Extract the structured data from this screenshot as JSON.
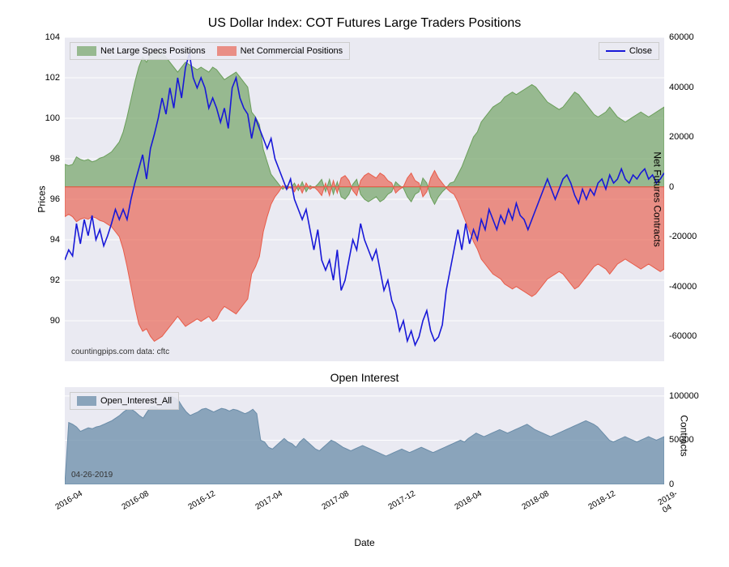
{
  "main_chart": {
    "title": "US Dollar Index: COT Futures Large Traders Positions",
    "left_axis_label": "Prices",
    "right_axis_label": "Net Futures Contracts",
    "left_ylim": [
      88,
      104
    ],
    "right_ylim": [
      -70000,
      60000
    ],
    "left_ticks": [
      90,
      92,
      94,
      96,
      98,
      100,
      102,
      104
    ],
    "right_ticks": [
      -60000,
      -40000,
      -20000,
      0,
      20000,
      40000,
      60000
    ],
    "x_ticks": [
      "2016-04",
      "2016-08",
      "2016-12",
      "2017-04",
      "2017-08",
      "2017-12",
      "2018-04",
      "2018-08",
      "2018-12",
      "2019-04"
    ],
    "colors": {
      "specs_fill": "#6a9e5a",
      "specs_fill_opacity": 0.65,
      "commercial_fill": "#e85c4a",
      "commercial_fill_opacity": 0.65,
      "close_line": "#1818d8",
      "zero_line": "#b0a050",
      "background": "#eaeaf2",
      "grid": "#ffffff"
    },
    "legend1_items": [
      {
        "label": "Net Large Specs Positions",
        "swatch": "#6a9e5a"
      },
      {
        "label": "Net Commercial Positions",
        "swatch": "#e85c4a"
      }
    ],
    "legend2_items": [
      {
        "label": "Close",
        "line": "#1818d8"
      }
    ],
    "footnote": "countingpips.com    data: cftc",
    "specs_values": [
      9000,
      8500,
      9000,
      12000,
      11000,
      10500,
      11000,
      10000,
      10500,
      11500,
      12000,
      13000,
      14000,
      16000,
      18000,
      22000,
      28000,
      35000,
      42000,
      48000,
      52000,
      50000,
      53000,
      54000,
      55000,
      54000,
      52000,
      50000,
      48000,
      46000,
      48000,
      50000,
      49000,
      48000,
      47000,
      48000,
      47000,
      46000,
      48000,
      47000,
      45000,
      43000,
      44000,
      45000,
      46000,
      44000,
      42000,
      40000,
      30000,
      28000,
      25000,
      15000,
      10000,
      5000,
      3000,
      1000,
      -1000,
      500,
      -500,
      1500,
      -1500,
      2000,
      -2000,
      500,
      -500,
      1000,
      3000,
      -2000,
      3000,
      -3000,
      2000,
      -4000,
      -5000,
      -3000,
      1000,
      3000,
      -3000,
      -5000,
      -6000,
      -5000,
      -4000,
      -6000,
      -5000,
      -3000,
      -2000,
      2000,
      500,
      -500,
      -4000,
      -6000,
      -3000,
      -2000,
      3500,
      1500,
      -4000,
      -7000,
      -4000,
      -2000,
      -500,
      1500,
      2000,
      5000,
      8000,
      12000,
      16000,
      20000,
      22000,
      26000,
      28000,
      30000,
      32000,
      33000,
      34000,
      36000,
      37000,
      38000,
      37000,
      38000,
      39000,
      40000,
      41000,
      40000,
      38000,
      36000,
      34000,
      33000,
      32000,
      31000,
      32000,
      34000,
      36000,
      38000,
      37000,
      35000,
      33000,
      31000,
      29000,
      28000,
      29000,
      30000,
      32000,
      30000,
      28000,
      27000,
      26000,
      27000,
      28000,
      29000,
      30000,
      29000,
      28000,
      29000,
      30000,
      31000,
      32000
    ],
    "commercial_values": [
      -12000,
      -11000,
      -12000,
      -14000,
      -13000,
      -12500,
      -13000,
      -12000,
      -12500,
      -13500,
      -14000,
      -15000,
      -16000,
      -18000,
      -20000,
      -25000,
      -32000,
      -40000,
      -48000,
      -55000,
      -58000,
      -57000,
      -60000,
      -62000,
      -61000,
      -60000,
      -58000,
      -56000,
      -54000,
      -52000,
      -54000,
      -56000,
      -55000,
      -54000,
      -53000,
      -54000,
      -53000,
      -52000,
      -54000,
      -53000,
      -50000,
      -48000,
      -49000,
      -50000,
      -51000,
      -49000,
      -47000,
      -45000,
      -35000,
      -32000,
      -28000,
      -18000,
      -12000,
      -7000,
      -4000,
      -2000,
      500,
      -1000,
      0,
      -2000,
      1000,
      -2500,
      1500,
      -1000,
      0,
      -1500,
      -3500,
      1500,
      -3500,
      2500,
      -2500,
      3500,
      4500,
      2500,
      -1500,
      -3500,
      2500,
      4500,
      5500,
      4500,
      3500,
      5500,
      4500,
      2500,
      1500,
      -2500,
      -1000,
      0,
      3500,
      5500,
      2500,
      1500,
      -4000,
      -2000,
      3500,
      6500,
      3500,
      1500,
      -500,
      -2000,
      -3000,
      -6000,
      -10000,
      -14000,
      -18000,
      -22000,
      -25000,
      -29000,
      -31000,
      -33000,
      -35000,
      -36000,
      -37000,
      -39000,
      -40000,
      -41000,
      -40000,
      -41000,
      -42000,
      -43000,
      -44000,
      -43000,
      -41000,
      -39000,
      -37000,
      -36000,
      -35000,
      -34000,
      -35000,
      -37000,
      -39000,
      -41000,
      -40000,
      -38000,
      -36000,
      -34000,
      -32000,
      -31000,
      -32000,
      -33000,
      -35000,
      -33000,
      -31000,
      -30000,
      -29000,
      -30000,
      -31000,
      -32000,
      -33000,
      -32000,
      -31000,
      -32000,
      -33000,
      -34000,
      -33000
    ],
    "close_values": [
      93.0,
      93.5,
      93.2,
      94.8,
      93.8,
      95.0,
      94.2,
      95.2,
      94.0,
      94.5,
      93.7,
      94.2,
      94.8,
      95.5,
      95.0,
      95.5,
      95.0,
      96.0,
      96.8,
      97.5,
      98.2,
      97.0,
      98.5,
      99.2,
      100.0,
      101.0,
      100.2,
      101.5,
      100.5,
      102.0,
      101.0,
      102.5,
      103.2,
      102.0,
      101.5,
      102.0,
      101.5,
      100.5,
      101.0,
      100.5,
      99.8,
      100.5,
      99.5,
      101.5,
      102.0,
      101.0,
      100.5,
      100.2,
      99.0,
      100.0,
      99.5,
      99.0,
      98.5,
      99.0,
      98.0,
      97.5,
      97.0,
      96.5,
      97.0,
      96.0,
      95.5,
      95.0,
      95.5,
      94.5,
      93.5,
      94.5,
      93.0,
      92.5,
      93.0,
      92.0,
      93.5,
      91.5,
      92.0,
      93.0,
      94.0,
      93.5,
      94.8,
      94.0,
      93.5,
      93.0,
      93.5,
      92.5,
      91.5,
      92.0,
      91.0,
      90.5,
      89.5,
      90.0,
      89.0,
      89.5,
      88.8,
      89.2,
      90.0,
      90.5,
      89.5,
      89.0,
      89.2,
      89.8,
      91.5,
      92.5,
      93.5,
      94.5,
      93.5,
      94.8,
      93.8,
      94.5,
      94.0,
      95.0,
      94.5,
      95.5,
      95.0,
      94.5,
      95.2,
      94.8,
      95.5,
      95.0,
      95.8,
      95.2,
      95.0,
      94.5,
      95.0,
      95.5,
      96.0,
      96.5,
      97.0,
      96.5,
      96.0,
      96.5,
      97.0,
      97.2,
      96.8,
      96.2,
      95.8,
      96.5,
      96.0,
      96.5,
      96.2,
      96.8,
      97.0,
      96.5,
      97.2,
      96.8,
      97.0,
      97.5,
      97.0,
      96.8,
      97.2,
      97.0,
      97.3,
      97.5,
      97.0,
      97.2,
      96.8,
      97.0,
      97.3
    ]
  },
  "sub_chart": {
    "title": "Open Interest",
    "right_axis_label": "Contracts",
    "right_ylim": [
      0,
      110000
    ],
    "right_ticks": [
      0,
      50000,
      100000
    ],
    "colors": {
      "fill": "#6a8ca8",
      "fill_opacity": 0.75,
      "background": "#eaeaf2"
    },
    "legend_items": [
      {
        "label": "Open_Interest_All",
        "swatch": "#6a8ca8"
      }
    ],
    "x_axis_label": "Date",
    "footnote": "04-26-2019",
    "oi_values": [
      0,
      70000,
      68000,
      65000,
      60000,
      62000,
      64000,
      63000,
      65000,
      66000,
      68000,
      70000,
      72000,
      75000,
      78000,
      82000,
      85000,
      85000,
      82000,
      78000,
      75000,
      82000,
      88000,
      88000,
      85000,
      88000,
      95000,
      100000,
      98000,
      95000,
      88000,
      82000,
      78000,
      80000,
      82000,
      85000,
      86000,
      84000,
      82000,
      84000,
      86000,
      85000,
      83000,
      85000,
      84000,
      82000,
      80000,
      82000,
      85000,
      80000,
      50000,
      48000,
      42000,
      40000,
      44000,
      48000,
      52000,
      48000,
      46000,
      42000,
      48000,
      52000,
      48000,
      44000,
      40000,
      38000,
      42000,
      46000,
      50000,
      48000,
      45000,
      42000,
      40000,
      38000,
      40000,
      42000,
      44000,
      42000,
      40000,
      38000,
      36000,
      34000,
      32000,
      34000,
      36000,
      38000,
      40000,
      38000,
      36000,
      38000,
      40000,
      42000,
      40000,
      38000,
      36000,
      38000,
      40000,
      42000,
      44000,
      46000,
      48000,
      50000,
      48000,
      52000,
      55000,
      58000,
      56000,
      54000,
      56000,
      58000,
      60000,
      62000,
      60000,
      58000,
      60000,
      62000,
      64000,
      66000,
      68000,
      65000,
      62000,
      60000,
      58000,
      56000,
      54000,
      56000,
      58000,
      60000,
      62000,
      64000,
      66000,
      68000,
      70000,
      72000,
      70000,
      68000,
      65000,
      60000,
      55000,
      50000,
      48000,
      50000,
      52000,
      54000,
      52000,
      50000,
      48000,
      50000,
      52000,
      54000,
      52000,
      50000,
      52000,
      54000
    ]
  }
}
